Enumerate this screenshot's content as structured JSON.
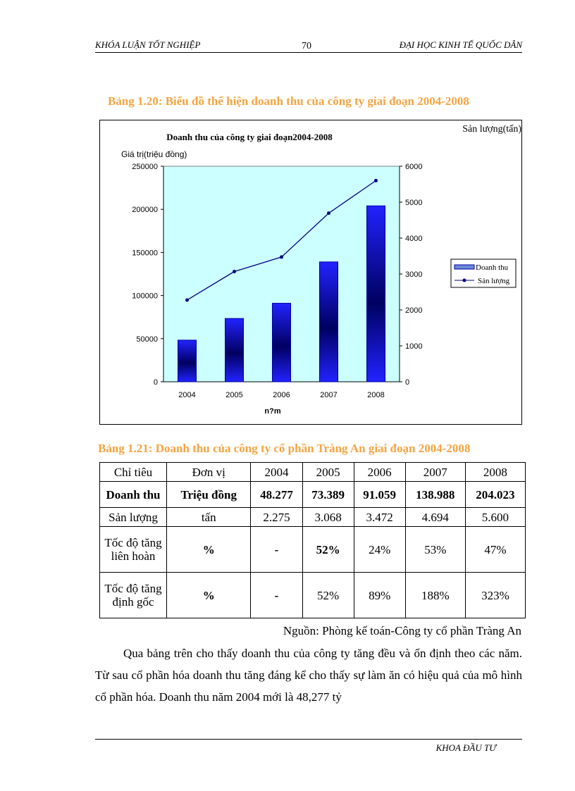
{
  "header": {
    "left": "KHÓA LUẬN TỐT NGHIỆP",
    "page_number": "70",
    "right": "ĐẠI HỌC KINH TẾ QUỐC DÂN"
  },
  "figure_caption": "Bảng 1.20: Biểu đồ thể hiện doanh thu của công ty giai đoạn 2004-2008",
  "chart_data": {
    "type": "bar+line",
    "title": "Doanh thu của công ty giai đoạn2004-2008",
    "ylabel": "Giá trị(triệu  đồng)",
    "y2label": "Sản lượng(tấn)",
    "xlabel": "n?m",
    "categories": [
      "2004",
      "2005",
      "2006",
      "2007",
      "2008"
    ],
    "ylim": [
      0,
      250000
    ],
    "yticks": [
      "0",
      "50000",
      "100000",
      "150000",
      "200000",
      "250000"
    ],
    "y2lim": [
      0,
      6000
    ],
    "y2ticks": [
      "0",
      "1000",
      "2000",
      "3000",
      "4000",
      "5000",
      "6000"
    ],
    "series": [
      {
        "name": "Doanh thu",
        "type": "bar",
        "axis": "left",
        "values": [
          48277,
          73389,
          91059,
          138988,
          204023
        ],
        "color": "#1010e0"
      },
      {
        "name": "Sản lượng",
        "type": "line",
        "axis": "right",
        "values": [
          2275,
          3068,
          3472,
          4694,
          5600
        ],
        "color": "#000080"
      }
    ],
    "legend": "right",
    "plot_background": "#ccffff"
  },
  "table": {
    "caption": "Bảng 1.21: Doanh thu của công ty cổ phần Tràng An giai đoạn 2004-2008",
    "headers": [
      "Chỉ tiêu",
      "Đơn vị",
      "2004",
      "2005",
      "2006",
      "2007",
      "2008"
    ],
    "rows": [
      [
        "Doanh thu",
        "Triệu đồng",
        "48.277",
        "73.389",
        "91.059",
        "138.988",
        "204.023"
      ],
      [
        "Sản lượng",
        "tấn",
        "2.275",
        "3.068",
        "3.472",
        "4.694",
        "5.600"
      ],
      [
        "Tốc độ tăng liên hoàn",
        "%",
        "-",
        "52%",
        "24%",
        "53%",
        "47%"
      ],
      [
        "Tốc độ tăng định gốc",
        "%",
        "-",
        "52%",
        "89%",
        "188%",
        "323%"
      ]
    ],
    "source": "Nguồn: Phòng kế toán-Công ty cổ phần Tràng An"
  },
  "body_text": "Qua bảng trên cho thấy doanh thu của công ty tăng đều và ổn định theo các năm. Từ sau cổ phần hóa doanh thu tăng đáng kể cho thấy sự làm ăn có hiệu quả của mô hình cổ phần hóa. Doanh thu năm 2004 mới là 48,277 tỷ",
  "footer": "KHOA ĐẦU TƯ"
}
